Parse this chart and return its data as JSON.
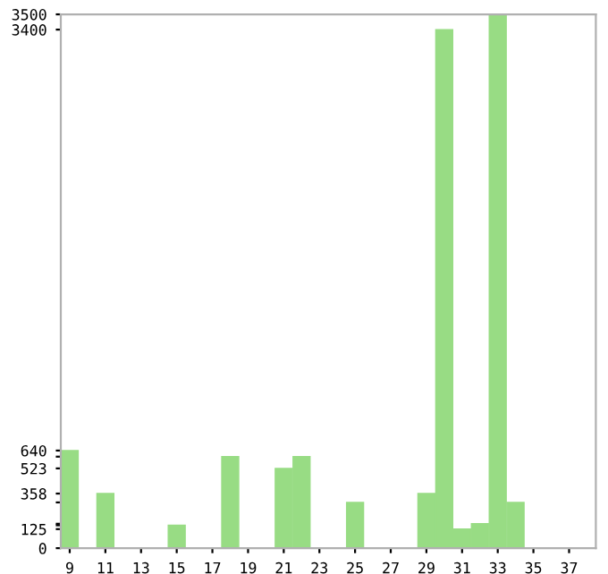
{
  "chart_data": {
    "type": "bar",
    "categories": [
      "9",
      null,
      "11",
      null,
      "13",
      null,
      "15",
      null,
      "17",
      null,
      "19",
      null,
      "21",
      null,
      "23",
      null,
      "25",
      null,
      "27",
      null,
      "29",
      null,
      "31",
      null,
      "33",
      null,
      "35",
      null,
      "37",
      null
    ],
    "values": [
      640,
      0,
      358,
      0,
      0,
      0,
      150,
      0,
      0,
      600,
      0,
      0,
      523,
      600,
      0,
      0,
      300,
      0,
      0,
      0,
      358,
      3400,
      125,
      160,
      3500,
      300,
      0,
      0,
      0,
      0
    ],
    "color": "#98dc84",
    "ylim": [
      0,
      3500
    ],
    "yticks": [
      0,
      125,
      {
        "value": 150,
        "label": null
      },
      {
        "value": 160,
        "label": null
      },
      {
        "value": 300,
        "label": null
      },
      358,
      523,
      {
        "value": 600,
        "label": null
      },
      640,
      3400,
      3500
    ],
    "grid": false
  }
}
